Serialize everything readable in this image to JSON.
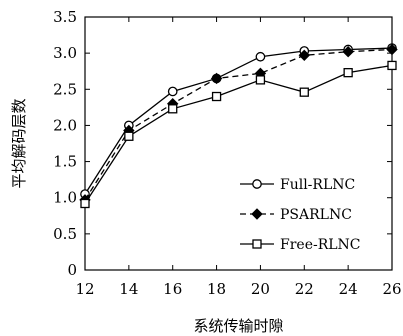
{
  "chart_data": {
    "type": "line",
    "xlabel": "系统传输时隙",
    "ylabel": "平均解码层数",
    "x": [
      12,
      14,
      16,
      18,
      20,
      22,
      24,
      26
    ],
    "xlim": [
      12,
      26
    ],
    "ylim": [
      0,
      3.5
    ],
    "xticks": [
      "12",
      "14",
      "16",
      "18",
      "20",
      "22",
      "24",
      "26"
    ],
    "yticks": [
      "0",
      "0.5",
      "1.0",
      "1.5",
      "2.0",
      "2.5",
      "3.0",
      "3.5"
    ],
    "grid": false,
    "legend_position": "lower-right",
    "series": [
      {
        "name": "Full-RLNC",
        "marker": "circle-open",
        "line": "solid",
        "color": "#000000",
        "values": [
          1.05,
          2.0,
          2.47,
          2.65,
          2.95,
          3.03,
          3.05,
          3.07
        ]
      },
      {
        "name": "PSARLNC",
        "marker": "diamond-filled",
        "line": "dashed",
        "color": "#000000",
        "values": [
          0.97,
          1.93,
          2.3,
          2.65,
          2.72,
          2.97,
          3.02,
          3.05
        ]
      },
      {
        "name": "Free-RLNC",
        "marker": "square-open",
        "line": "solid",
        "color": "#000000",
        "values": [
          0.92,
          1.85,
          2.23,
          2.4,
          2.63,
          2.46,
          2.73,
          2.83
        ]
      }
    ]
  }
}
